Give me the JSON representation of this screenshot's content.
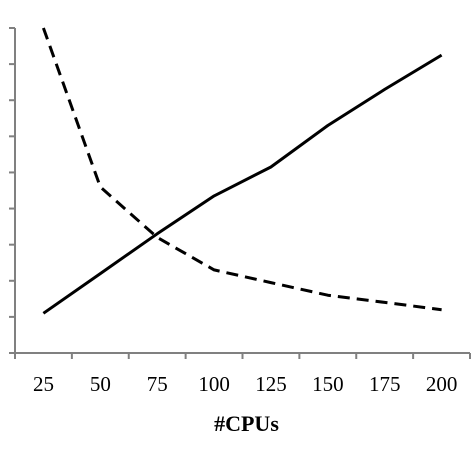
{
  "chart_data": {
    "type": "line",
    "title": "",
    "xlabel": "#CPUs",
    "ylabel": "",
    "x": [
      25,
      50,
      75,
      100,
      125,
      150,
      175,
      200
    ],
    "xlim": [
      12.5,
      212.5
    ],
    "ylim": [
      0,
      9
    ],
    "y_tick_count": 9,
    "y_tick_labels_shown": false,
    "grid": false,
    "legend": "none",
    "series": [
      {
        "style": "solid",
        "color": "#000000",
        "values": [
          1.1,
          2.2,
          3.3,
          4.35,
          5.15,
          6.3,
          7.3,
          8.25
        ]
      },
      {
        "style": "dashed",
        "color": "#000000",
        "values": [
          9.0,
          4.6,
          3.2,
          2.3,
          1.95,
          1.6,
          1.4,
          1.2
        ]
      }
    ]
  }
}
